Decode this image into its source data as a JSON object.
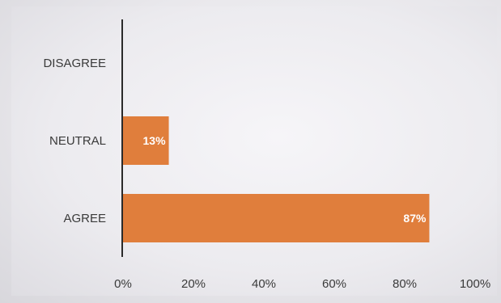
{
  "chart_data": {
    "type": "bar",
    "orientation": "horizontal",
    "categories": [
      "DISAGREE",
      "NEUTRAL",
      "AGREE"
    ],
    "values": [
      0,
      13,
      87
    ],
    "data_labels": [
      "",
      "13%",
      "87%"
    ],
    "xlim": [
      0,
      100
    ],
    "x_ticks": [
      "0%",
      "20%",
      "40%",
      "60%",
      "80%",
      "100%"
    ],
    "grid": false,
    "legend": "none",
    "bar_color": "#e07e3c",
    "label_color": "#ffffff"
  }
}
